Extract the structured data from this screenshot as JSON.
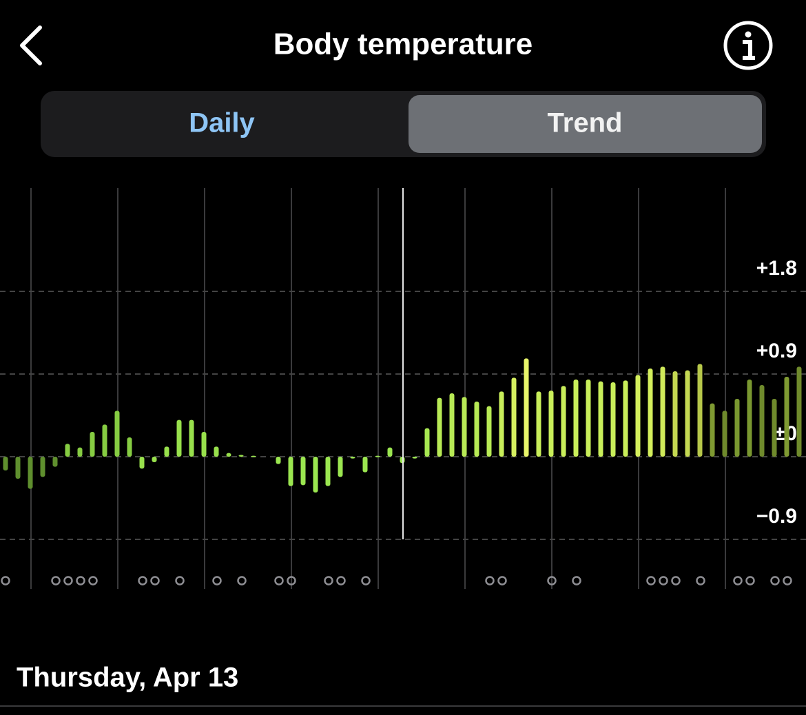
{
  "header": {
    "title": "Body temperature"
  },
  "tabs": [
    "Daily",
    "Trend"
  ],
  "chart_data": {
    "type": "bar",
    "values": [
      -0.15,
      -0.24,
      -0.35,
      -0.22,
      -0.11,
      0.14,
      0.1,
      0.27,
      0.35,
      0.5,
      0.21,
      -0.13,
      -0.06,
      0.11,
      0.4,
      0.4,
      0.27,
      0.11,
      0.04,
      0.02,
      0.01,
      null,
      -0.08,
      -0.32,
      -0.31,
      -0.39,
      -0.32,
      -0.22,
      -0.02,
      -0.17,
      0.01,
      0.1,
      -0.07,
      -0.02,
      0.31,
      0.64,
      0.69,
      0.65,
      0.6,
      0.55,
      0.71,
      0.86,
      1.07,
      0.71,
      0.72,
      0.77,
      0.84,
      0.84,
      0.82,
      0.81,
      0.83,
      0.89,
      0.96,
      0.98,
      0.93,
      0.94,
      1.01,
      0.58,
      0.5,
      0.63,
      0.84,
      0.78,
      0.63,
      0.87,
      0.98
    ],
    "colors": [
      "#5f8f2e",
      "#5f8f2e",
      "#5f8f2e",
      "#5f8f2e",
      "#5f8f2e",
      "#86cc42",
      "#86cc42",
      "#86cc42",
      "#86cc42",
      "#86cc42",
      "#86cc42",
      "#98e04c",
      "#98e04c",
      "#98e04c",
      "#98e04c",
      "#98e04c",
      "#98e04c",
      "#98e04c",
      "#98e04c",
      "#98e04c",
      "#98e04c",
      "#98e04c",
      "#9be650",
      "#9be650",
      "#9be650",
      "#9be650",
      "#9be650",
      "#9be650",
      "#9be650",
      "#9be650",
      "#9be650",
      "#9be650",
      "#9be650",
      "#9be650",
      "#a8e852",
      "#b8ea55",
      "#b8ea55",
      "#b8ea55",
      "#b8ea55",
      "#b8ea55",
      "#c9ee5a",
      "#d6f060",
      "#e8f56a",
      "#c9ee5a",
      "#c9ee5a",
      "#c9ee5a",
      "#c9ee5a",
      "#c9ee5a",
      "#c9ee5a",
      "#c9ee5a",
      "#c9ee5a",
      "#d4ef5c",
      "#d4ef5c",
      "#d0ea5a",
      "#c4d852",
      "#c4d852",
      "#b7c84a",
      "#7f9a32",
      "#6f8a2c",
      "#7a9830",
      "#7a9830",
      "#6f8a2c",
      "#6f8a2c",
      "#7f9a32",
      "#6f8a2c"
    ],
    "ylim": [
      -1.44,
      2.925
    ],
    "yticks": [
      {
        "value": 1.8,
        "label": "+1.8"
      },
      {
        "value": 0.9,
        "label": "+0.9"
      },
      {
        "value": 0,
        "label": "±0"
      },
      {
        "value": -0.9,
        "label": "−0.9"
      }
    ],
    "grid": true
  },
  "date": "Thursday, Apr 13"
}
